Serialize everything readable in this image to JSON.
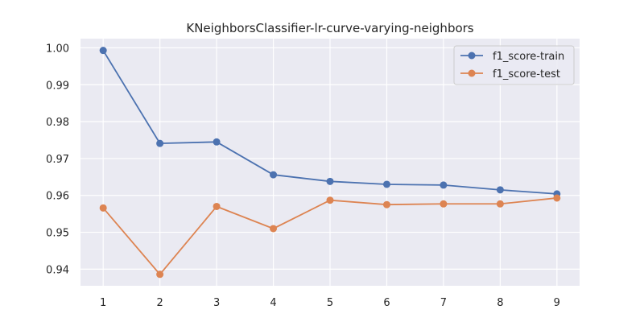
{
  "chart_data": {
    "type": "line",
    "title": "KNeighborsClassifier-lr-curve-varying-neighbors",
    "xlabel": "",
    "ylabel": "",
    "x": [
      1,
      2,
      3,
      4,
      5,
      6,
      7,
      8,
      9
    ],
    "x_tick_labels": [
      "1",
      "2",
      "3",
      "4",
      "5",
      "6",
      "7",
      "8",
      "9"
    ],
    "y_tick_labels": [
      "0.94",
      "0.95",
      "0.96",
      "0.97",
      "0.98",
      "0.99",
      "1.00"
    ],
    "y_ticks": [
      0.94,
      0.95,
      0.96,
      0.97,
      0.98,
      0.99,
      1.0
    ],
    "xlim": [
      0.6,
      9.4
    ],
    "ylim": [
      0.9355,
      1.0025
    ],
    "grid": true,
    "legend_position": "top-right",
    "series": [
      {
        "name": "f1_score-train",
        "color": "#4c72b0",
        "values": [
          0.9993,
          0.9741,
          0.9745,
          0.9656,
          0.9638,
          0.963,
          0.9628,
          0.9615,
          0.9604
        ]
      },
      {
        "name": "f1_score-test",
        "color": "#dd8452",
        "values": [
          0.9566,
          0.9386,
          0.957,
          0.951,
          0.9587,
          0.9575,
          0.9577,
          0.9577,
          0.9593
        ]
      }
    ]
  }
}
